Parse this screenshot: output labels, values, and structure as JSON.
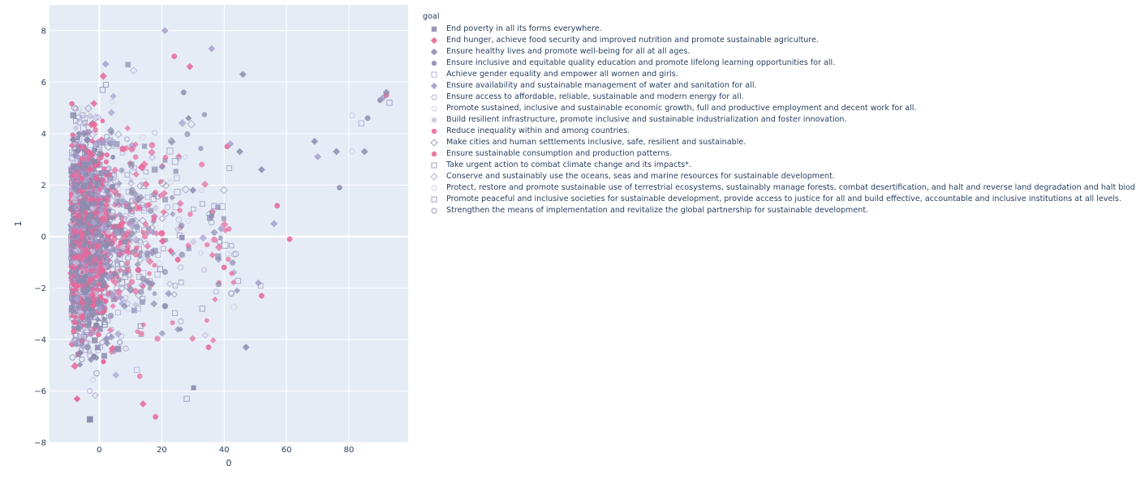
{
  "chart_data": {
    "type": "scatter",
    "title": "",
    "xlabel": "0",
    "ylabel": "1",
    "xlim": [
      -16,
      99
    ],
    "ylim": [
      -8,
      9
    ],
    "grid": true,
    "legend_placement": "right",
    "x_ticks": [
      "0",
      "20",
      "40",
      "60",
      "80"
    ],
    "y_ticks": [
      "−8",
      "−6",
      "−4",
      "−2",
      "0",
      "2",
      "4",
      "6",
      "8"
    ],
    "legend_title": "goal",
    "colors": {
      "plot_bg": "#e5ecf6",
      "grid": "#ffffff",
      "gray": "#8e8caf",
      "pink": "#e8689a",
      "lavender": "#a99fcf"
    },
    "series": [
      {
        "name": "End poverty in all its forms everywhere.",
        "symbol": "square",
        "color": "#8e8caf",
        "filled": true
      },
      {
        "name": "End hunger, achieve food security and improved nutrition and promote sustainable agriculture.",
        "symbol": "diamond",
        "color": "#e8689a",
        "filled": true
      },
      {
        "name": "Ensure healthy lives and promote well-being for all at all ages.",
        "symbol": "diamond",
        "color": "#8e8caf",
        "filled": true
      },
      {
        "name": "Ensure inclusive and equitable quality education and promote lifelong learning opportunities for all.",
        "symbol": "circle",
        "color": "#8e8caf",
        "filled": true
      },
      {
        "name": "Achieve gender equality and empower all women and girls.",
        "symbol": "square",
        "color": "#a99fcf",
        "filled": false
      },
      {
        "name": "Ensure availability and sustainable management of water and sanitation for all.",
        "symbol": "diamond",
        "color": "#a99fcf",
        "filled": true
      },
      {
        "name": "Ensure access to affordable, reliable, sustainable and modern energy for all.",
        "symbol": "circle",
        "color": "#a99fcf",
        "filled": false
      },
      {
        "name": "Promote sustained, inclusive and sustainable economic growth, full and productive employment and decent work for all.",
        "symbol": "circle",
        "color": "#c9c5de",
        "filled": false
      },
      {
        "name": "Build resilient infrastructure, promote inclusive and sustainable industrialization and foster innovation.",
        "symbol": "cross",
        "color": "#c9c5de",
        "filled": true
      },
      {
        "name": "Reduce inequality within and among countries.",
        "symbol": "circle",
        "color": "#e8689a",
        "filled": true
      },
      {
        "name": "Make cities and human settlements inclusive, safe, resilient and sustainable.",
        "symbol": "diamond",
        "color": "#8e8caf",
        "filled": false
      },
      {
        "name": "Ensure sustainable consumption and production patterns.",
        "symbol": "circle",
        "color": "#e8689a",
        "filled": true
      },
      {
        "name": "Take urgent action to combat climate change and its impacts*.",
        "symbol": "square",
        "color": "#8e8caf",
        "filled": false
      },
      {
        "name": "Conserve and sustainably use the oceans, seas and marine resources for sustainable development.",
        "symbol": "diamond",
        "color": "#a99fcf",
        "filled": false
      },
      {
        "name": "Protect, restore and promote sustainable use of terrestrial ecosystems, sustainably manage forests, combat desertification, and halt and reverse land degradation and halt biodiversity loss.",
        "symbol": "circle",
        "color": "#c9c5de",
        "filled": false
      },
      {
        "name": "Promote peaceful and inclusive societies for sustainable development, provide access to justice for all and build effective, accountable and inclusive institutions at all levels.",
        "symbol": "square",
        "color": "#8e8caf",
        "filled": false
      },
      {
        "name": "Strengthen the means of implementation and revitalize the global partnership for sustainable development.",
        "symbol": "circle",
        "color": "#8e8caf",
        "filled": false
      }
    ],
    "approximate_points": [
      {
        "x": 91,
        "y": 5.4,
        "symbol": "diamond",
        "color": "#a99fcf"
      },
      {
        "x": 92,
        "y": 5.5,
        "symbol": "circle",
        "color": "#e8689a"
      },
      {
        "x": 93,
        "y": 5.2,
        "symbol": "square",
        "color": "#8e8caf"
      },
      {
        "x": 90,
        "y": 5.3,
        "symbol": "circle",
        "color": "#8e8caf"
      },
      {
        "x": 92,
        "y": 5.6,
        "symbol": "diamond",
        "color": "#8e8caf"
      },
      {
        "x": 86,
        "y": 4.6,
        "symbol": "circle",
        "color": "#8e8caf"
      },
      {
        "x": 84,
        "y": 4.4,
        "symbol": "square",
        "color": "#a99fcf"
      },
      {
        "x": 81,
        "y": 4.7,
        "symbol": "circle",
        "color": "#c9c5de"
      },
      {
        "x": 76,
        "y": 3.3,
        "symbol": "diamond",
        "color": "#8e8caf"
      },
      {
        "x": 85,
        "y": 3.3,
        "symbol": "diamond",
        "color": "#8e8caf"
      },
      {
        "x": 81,
        "y": 3.3,
        "symbol": "circle",
        "color": "#c9c5de"
      },
      {
        "x": 70,
        "y": 3.1,
        "symbol": "diamond",
        "color": "#a99fcf"
      },
      {
        "x": 69,
        "y": 3.7,
        "symbol": "diamond",
        "color": "#8e8caf"
      },
      {
        "x": 77,
        "y": 1.9,
        "symbol": "circle",
        "color": "#8e8caf"
      },
      {
        "x": 61,
        "y": -0.1,
        "symbol": "circle",
        "color": "#e8689a"
      },
      {
        "x": 57,
        "y": 1.2,
        "symbol": "circle",
        "color": "#e8689a"
      },
      {
        "x": 56,
        "y": 0.5,
        "symbol": "diamond",
        "color": "#a99fcf"
      },
      {
        "x": 52,
        "y": 2.6,
        "symbol": "diamond",
        "color": "#8e8caf"
      },
      {
        "x": 52,
        "y": -2.3,
        "symbol": "circle",
        "color": "#e8689a"
      },
      {
        "x": 51,
        "y": -1.8,
        "symbol": "diamond",
        "color": "#a99fcf"
      },
      {
        "x": 46,
        "y": 6.3,
        "symbol": "diamond",
        "color": "#8e8caf"
      },
      {
        "x": 47,
        "y": -4.3,
        "symbol": "diamond",
        "color": "#8e8caf"
      },
      {
        "x": 36,
        "y": 7.3,
        "symbol": "diamond",
        "color": "#a99fcf"
      },
      {
        "x": 29,
        "y": 6.6,
        "symbol": "diamond",
        "color": "#e8689a"
      },
      {
        "x": 27,
        "y": 5.6,
        "symbol": "circle",
        "color": "#8e8caf"
      },
      {
        "x": 24,
        "y": 7.0,
        "symbol": "circle",
        "color": "#e8689a"
      },
      {
        "x": 21,
        "y": 8.0,
        "symbol": "diamond",
        "color": "#a99fcf"
      },
      {
        "x": 2,
        "y": 6.7,
        "symbol": "diamond",
        "color": "#a99fcf"
      },
      {
        "x": 1,
        "y": 5.7,
        "symbol": "square",
        "color": "#8e8caf"
      },
      {
        "x": 14,
        "y": -6.5,
        "symbol": "diamond",
        "color": "#e8689a"
      },
      {
        "x": 18,
        "y": -7.0,
        "symbol": "circle",
        "color": "#e8689a"
      },
      {
        "x": 28,
        "y": -6.3,
        "symbol": "square",
        "color": "#8e8caf"
      },
      {
        "x": 41,
        "y": 3.5,
        "symbol": "circle",
        "color": "#e8689a"
      },
      {
        "x": 45,
        "y": 3.3,
        "symbol": "diamond",
        "color": "#8e8caf"
      },
      {
        "x": 42,
        "y": 3.6,
        "symbol": "diamond",
        "color": "#a99fcf"
      },
      {
        "x": 30,
        "y": 1.8,
        "symbol": "diamond",
        "color": "#8e8caf"
      },
      {
        "x": 35,
        "y": -4.3,
        "symbol": "circle",
        "color": "#e8689a"
      },
      {
        "x": 36,
        "y": 0.8,
        "symbol": "circle",
        "color": "#8e8caf"
      },
      {
        "x": 39,
        "y": 0.3,
        "symbol": "diamond",
        "color": "#a99fcf"
      },
      {
        "x": 40,
        "y": -1.2,
        "symbol": "circle",
        "color": "#e8689a"
      },
      {
        "x": 33,
        "y": -2.8,
        "symbol": "square",
        "color": "#8e8caf"
      }
    ]
  }
}
